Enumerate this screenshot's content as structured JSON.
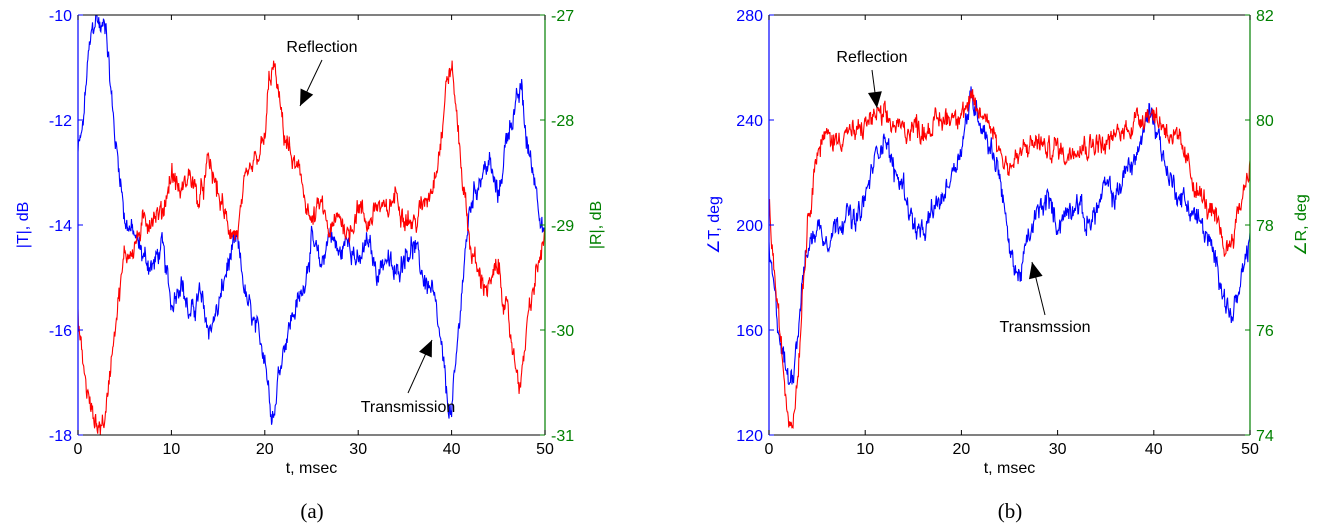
{
  "colors": {
    "left_axis": "#0000ff",
    "right_axis": "#008000",
    "transmission": "#0000ff",
    "reflection": "#ff0000",
    "text": "#000000"
  },
  "chart_data": [
    {
      "type": "line",
      "caption": "(a)",
      "xlabel": "t, msec",
      "ylabel_left": "|T|, dB",
      "ylabel_right": "|R|, dB",
      "xlim": [
        0,
        50
      ],
      "ylim_left": [
        -18,
        -10
      ],
      "ylim_right": [
        -31,
        -27
      ],
      "xticks": [
        0,
        10,
        20,
        30,
        40,
        50
      ],
      "yticks_left": [
        -18,
        -16,
        -14,
        -12,
        -10
      ],
      "yticks_right": [
        -31,
        -30,
        -29,
        -28,
        -27
      ],
      "grid": false,
      "annotations": [
        "Reflection",
        "Transmission"
      ],
      "series": [
        {
          "name": "Transmission",
          "axis": "left",
          "color": "#0000ff",
          "x": [
            0,
            0.5,
            1,
            1.5,
            2,
            2.5,
            3,
            3.5,
            4,
            4.5,
            5,
            6,
            7,
            8,
            9,
            10,
            11,
            12,
            13,
            14,
            15,
            16,
            17,
            18,
            19,
            20,
            20.5,
            21,
            21.5,
            22,
            23,
            24,
            25,
            26,
            27,
            28,
            29,
            30,
            31,
            32,
            33,
            34,
            35,
            36,
            37,
            38,
            39,
            39.5,
            40,
            40.5,
            41,
            42,
            43,
            44,
            45,
            46,
            47,
            47.5,
            48,
            49,
            50
          ],
          "y": [
            -12.6,
            -12.2,
            -11.0,
            -10.3,
            -10.0,
            -10.3,
            -10.1,
            -11.4,
            -12.4,
            -13.0,
            -13.9,
            -14.2,
            -14.6,
            -14.8,
            -14.4,
            -15.5,
            -15.0,
            -15.8,
            -15.3,
            -16.0,
            -15.6,
            -14.8,
            -14.3,
            -15.4,
            -16.0,
            -16.4,
            -17.3,
            -17.6,
            -16.8,
            -16.3,
            -15.7,
            -15.3,
            -14.3,
            -14.8,
            -14.1,
            -14.6,
            -14.2,
            -14.8,
            -14.3,
            -14.9,
            -14.6,
            -15.0,
            -14.5,
            -14.4,
            -15.0,
            -15.3,
            -16.5,
            -17.3,
            -17.6,
            -16.6,
            -15.4,
            -13.6,
            -13.1,
            -12.8,
            -13.5,
            -12.2,
            -11.7,
            -11.4,
            -12.4,
            -13.2,
            -14.3
          ]
        },
        {
          "name": "Reflection",
          "axis": "right",
          "color": "#ff0000",
          "x": [
            0,
            0.5,
            1,
            1.5,
            2,
            2.5,
            3,
            3.5,
            4,
            4.5,
            5,
            6,
            7,
            8,
            9,
            10,
            11,
            12,
            13,
            14,
            15,
            16,
            17,
            18,
            19,
            20,
            20.5,
            21,
            21.5,
            22,
            23,
            24,
            25,
            26,
            27,
            28,
            29,
            30,
            31,
            32,
            33,
            34,
            35,
            36,
            37,
            38,
            39,
            39.5,
            40,
            40.5,
            41,
            42,
            43,
            44,
            45,
            46,
            47,
            47.5,
            48,
            49,
            50
          ],
          "y": [
            -29.9,
            -30.3,
            -30.6,
            -30.8,
            -30.9,
            -30.9,
            -30.8,
            -30.3,
            -29.9,
            -29.6,
            -29.3,
            -29.2,
            -29.0,
            -28.9,
            -28.9,
            -28.5,
            -28.7,
            -28.5,
            -28.8,
            -28.4,
            -28.7,
            -29.0,
            -29.1,
            -28.6,
            -28.4,
            -28.2,
            -27.6,
            -27.5,
            -27.8,
            -28.1,
            -28.4,
            -28.6,
            -29.0,
            -28.8,
            -29.1,
            -28.9,
            -29.1,
            -28.8,
            -29.0,
            -28.8,
            -28.9,
            -28.7,
            -28.9,
            -29.0,
            -28.8,
            -28.6,
            -28.1,
            -27.6,
            -27.5,
            -27.9,
            -28.4,
            -29.2,
            -29.5,
            -29.6,
            -29.4,
            -29.9,
            -30.4,
            -30.5,
            -30.0,
            -29.5,
            -29.1
          ]
        }
      ]
    },
    {
      "type": "line",
      "caption": "(b)",
      "xlabel": "t, msec",
      "ylabel_left": "∠T, deg",
      "ylabel_right": "∠R, deg",
      "xlim": [
        0,
        50
      ],
      "ylim_left": [
        120,
        280
      ],
      "ylim_right": [
        74,
        82
      ],
      "xticks": [
        0,
        10,
        20,
        30,
        40,
        50
      ],
      "yticks_left": [
        120,
        160,
        200,
        240,
        280
      ],
      "yticks_right": [
        74,
        76,
        78,
        80,
        82
      ],
      "grid": false,
      "annotations": [
        "Reflection",
        "Transmssion"
      ],
      "series": [
        {
          "name": "Transmission",
          "axis": "left",
          "color": "#0000ff",
          "x": [
            0,
            0.5,
            1,
            1.5,
            2,
            2.5,
            3,
            3.5,
            4,
            4.5,
            5,
            6,
            7,
            8,
            9,
            10,
            11,
            12,
            13,
            14,
            15,
            16,
            17,
            18,
            19,
            20,
            20.5,
            21,
            21.5,
            22,
            23,
            24,
            25,
            26,
            27,
            28,
            29,
            30,
            31,
            32,
            33,
            34,
            35,
            36,
            37,
            38,
            39,
            39.5,
            40,
            40.5,
            41,
            42,
            43,
            44,
            45,
            46,
            47,
            47.5,
            48,
            49,
            50
          ],
          "y": [
            190,
            175,
            160,
            150,
            140,
            145,
            160,
            180,
            190,
            195,
            200,
            195,
            200,
            205,
            200,
            210,
            225,
            235,
            220,
            215,
            200,
            195,
            205,
            210,
            220,
            230,
            240,
            248,
            245,
            240,
            230,
            220,
            190,
            180,
            195,
            205,
            210,
            200,
            205,
            210,
            200,
            205,
            215,
            210,
            220,
            225,
            235,
            245,
            240,
            235,
            225,
            215,
            210,
            205,
            200,
            190,
            180,
            170,
            165,
            175,
            195
          ]
        },
        {
          "name": "Reflection",
          "axis": "right",
          "color": "#ff0000",
          "x": [
            0,
            0.5,
            1,
            1.5,
            2,
            2.5,
            3,
            3.5,
            4,
            4.5,
            5,
            6,
            7,
            8,
            9,
            10,
            11,
            12,
            13,
            14,
            15,
            16,
            17,
            18,
            19,
            20,
            20.5,
            21,
            21.5,
            22,
            23,
            24,
            25,
            26,
            27,
            28,
            29,
            30,
            31,
            32,
            33,
            34,
            35,
            36,
            37,
            38,
            39,
            39.5,
            40,
            40.5,
            41,
            42,
            43,
            44,
            45,
            46,
            47,
            47.5,
            48,
            49,
            50
          ],
          "y": [
            78.4,
            77.2,
            76.2,
            75.2,
            74.4,
            74.3,
            75.2,
            76.8,
            78.0,
            78.8,
            79.4,
            79.7,
            79.6,
            79.8,
            79.7,
            79.9,
            80.1,
            80.0,
            79.9,
            79.8,
            79.9,
            79.8,
            79.9,
            80.0,
            80.1,
            80.2,
            80.2,
            80.3,
            80.2,
            80.1,
            80.0,
            79.4,
            79.1,
            79.3,
            79.5,
            79.6,
            79.4,
            79.5,
            79.3,
            79.6,
            79.5,
            79.6,
            79.5,
            79.7,
            79.8,
            80.0,
            80.1,
            80.2,
            80.1,
            80.0,
            79.9,
            79.7,
            79.4,
            78.9,
            78.5,
            78.2,
            77.8,
            77.5,
            77.7,
            78.4,
            79.2
          ]
        }
      ]
    }
  ]
}
